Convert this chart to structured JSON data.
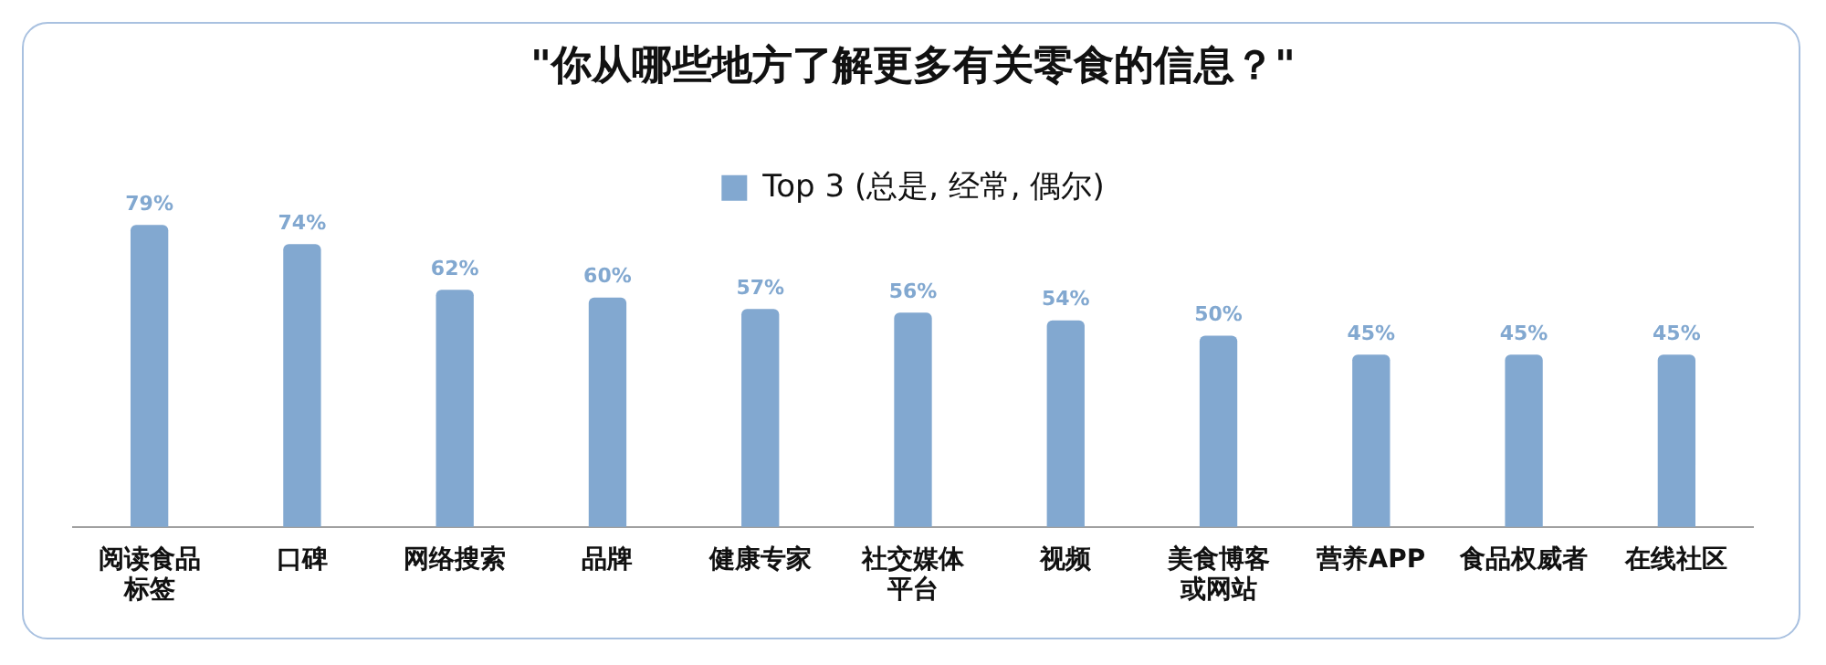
{
  "chart_data": {
    "type": "bar",
    "title": "\"你从哪些地方了解更多有关零食的信息？\"",
    "categories": [
      "阅读食品标签",
      "口碑",
      "网络搜索",
      "品牌",
      "健康专家",
      "社交媒体平台",
      "视频",
      "美食博客或网站",
      "营养APP",
      "食品权威者",
      "在线社区"
    ],
    "series": [
      {
        "name": "Top 3 (总是, 经常, 偶尔)",
        "color": "#82a8d0",
        "values": [
          79,
          74,
          62,
          60,
          57,
          56,
          54,
          50,
          45,
          45,
          45
        ],
        "value_labels": [
          "79%",
          "74%",
          "62%",
          "60%",
          "57%",
          "56%",
          "54%",
          "50%",
          "45%",
          "45%",
          "45%"
        ]
      }
    ],
    "ylim": [
      0,
      80
    ],
    "tick_labels": "x",
    "grid": false,
    "legend": "top"
  }
}
